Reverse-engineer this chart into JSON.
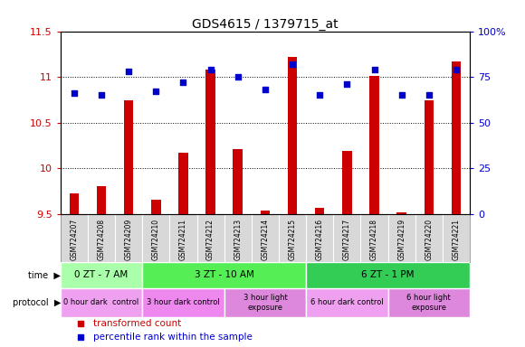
{
  "title": "GDS4615 / 1379715_at",
  "samples": [
    "GSM724207",
    "GSM724208",
    "GSM724209",
    "GSM724210",
    "GSM724211",
    "GSM724212",
    "GSM724213",
    "GSM724214",
    "GSM724215",
    "GSM724216",
    "GSM724217",
    "GSM724218",
    "GSM724219",
    "GSM724220",
    "GSM724221"
  ],
  "transformed_count": [
    9.72,
    9.8,
    10.74,
    9.65,
    10.17,
    11.08,
    10.21,
    9.54,
    11.22,
    9.57,
    10.19,
    11.01,
    9.52,
    10.74,
    11.17
  ],
  "percentile_rank": [
    66,
    65,
    78,
    67,
    72,
    79,
    75,
    68,
    82,
    65,
    71,
    79,
    65,
    65,
    79
  ],
  "ylim_left": [
    9.5,
    11.5
  ],
  "ylim_right": [
    0,
    100
  ],
  "yticks_left": [
    9.5,
    10.0,
    10.5,
    11.0,
    11.5
  ],
  "yticks_right": [
    0,
    25,
    50,
    75,
    100
  ],
  "bar_color": "#cc0000",
  "dot_color": "#0000cc",
  "bar_width": 0.35,
  "dot_size": 22,
  "time_groups": [
    {
      "label": "0 ZT - 7 AM",
      "start": 0,
      "end": 3,
      "color": "#aaffaa"
    },
    {
      "label": "3 ZT - 10 AM",
      "start": 3,
      "end": 9,
      "color": "#55ee55"
    },
    {
      "label": "6 ZT - 1 PM",
      "start": 9,
      "end": 15,
      "color": "#33cc55"
    }
  ],
  "protocol_groups": [
    {
      "label": "0 hour dark  control",
      "start": 0,
      "end": 3,
      "color": "#f0a0f0"
    },
    {
      "label": "3 hour dark control",
      "start": 3,
      "end": 6,
      "color": "#ee88ee"
    },
    {
      "label": "3 hour light\nexposure",
      "start": 6,
      "end": 9,
      "color": "#dd88dd"
    },
    {
      "label": "6 hour dark control",
      "start": 9,
      "end": 12,
      "color": "#f0a0f0"
    },
    {
      "label": "6 hour light\nexposure",
      "start": 12,
      "end": 15,
      "color": "#dd88dd"
    }
  ]
}
